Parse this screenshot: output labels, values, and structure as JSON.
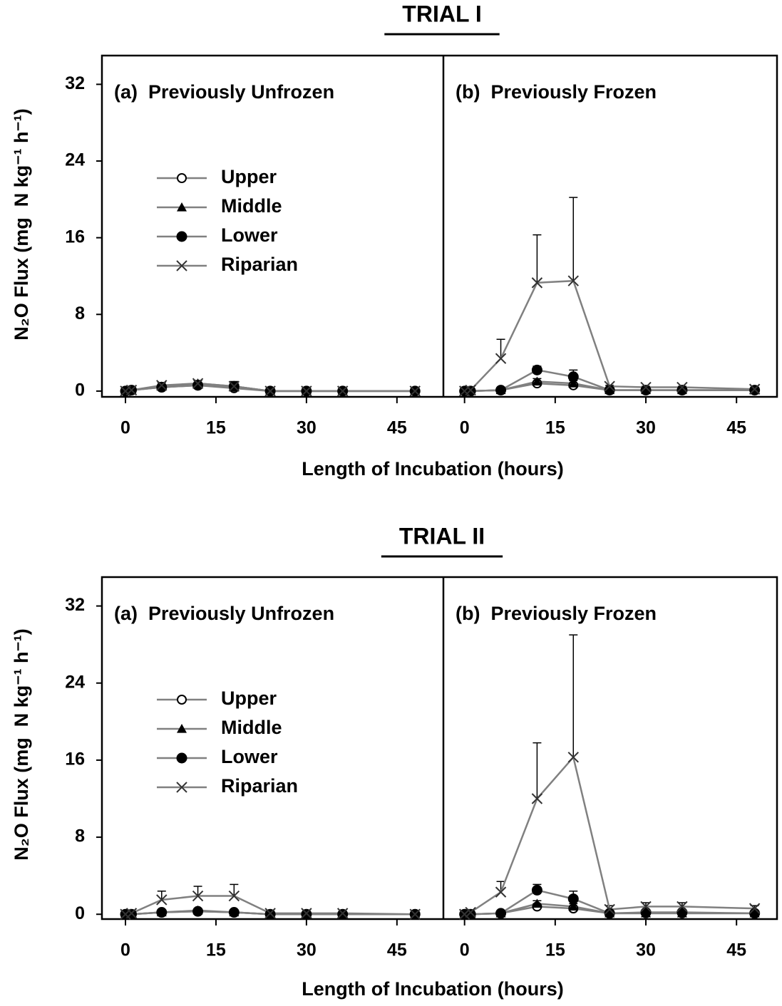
{
  "chart_data": [
    {
      "type": "line",
      "title": "TRIAL I",
      "ylabel": "N₂O Flux (mg  N kg⁻¹ h⁻¹)",
      "xlabel": "Length of Incubation (hours)",
      "ylim": [
        -0.6,
        35
      ],
      "yticks": [
        0,
        8,
        16,
        24,
        32
      ],
      "legend": true,
      "panels": [
        {
          "label": "(a)  Previously Unfrozen",
          "xlim": [
            -3.9,
            52.7
          ],
          "xticks": [
            0,
            15,
            30,
            45
          ],
          "x": [
            0,
            1,
            6,
            12,
            18,
            24,
            30,
            36,
            48
          ],
          "series": [
            {
              "name": "Upper",
              "marker": "open-circle",
              "color": "#808080",
              "marker_color": "#000000",
              "values": [
                0,
                0.1,
                0.4,
                0.6,
                0.3,
                0,
                0,
                0,
                0
              ],
              "errors": [
                0.1,
                0.1,
                0.2,
                0.2,
                0.3,
                0.1,
                0.1,
                0.1,
                0.1
              ]
            },
            {
              "name": "Middle",
              "marker": "triangle",
              "color": "#808080",
              "marker_color": "#000000",
              "values": [
                0,
                0.1,
                0.5,
                0.8,
                0.5,
                0,
                0,
                0,
                0
              ],
              "errors": [
                0.1,
                0.1,
                0.2,
                0.3,
                0.4,
                0.1,
                0.1,
                0.1,
                0.1
              ]
            },
            {
              "name": "Lower",
              "marker": "filled-circle",
              "color": "#808080",
              "marker_color": "#000000",
              "values": [
                0,
                0.1,
                0.4,
                0.6,
                0.5,
                0,
                0,
                0,
                0
              ],
              "errors": [
                0.1,
                0.1,
                0.2,
                0.2,
                0.4,
                0.1,
                0.1,
                0.1,
                0.1
              ]
            },
            {
              "name": "Riparian",
              "marker": "cross",
              "color": "#808080",
              "marker_color": "#333333",
              "values": [
                0,
                0.1,
                0.6,
                0.8,
                0.5,
                0,
                0,
                0,
                0
              ],
              "errors": [
                0.1,
                0.1,
                0.3,
                0.3,
                0.5,
                0.1,
                0.1,
                0.1,
                0.1
              ]
            }
          ]
        },
        {
          "label": "(b)  Previously Frozen",
          "xlim": [
            -3.5,
            51.7
          ],
          "xticks": [
            0,
            15,
            30,
            45
          ],
          "x": [
            0,
            1,
            6,
            12,
            18,
            24,
            30,
            36,
            48
          ],
          "series": [
            {
              "marker": "open-circle",
              "color": "#808080",
              "marker_color": "#000000",
              "values": [
                0,
                0,
                0.1,
                0.8,
                0.6,
                0.1,
                0.1,
                0.1,
                0.1
              ],
              "errors": [
                0.1,
                0.1,
                0.1,
                0.2,
                0.2,
                0.1,
                0.1,
                0.1,
                0.1
              ]
            },
            {
              "marker": "triangle",
              "color": "#808080",
              "marker_color": "#000000",
              "values": [
                0,
                0,
                0.1,
                1.0,
                0.8,
                0.1,
                0.1,
                0.1,
                0.1
              ],
              "errors": [
                0.1,
                0.1,
                0.1,
                0.3,
                0.3,
                0.1,
                0.1,
                0.1,
                0.1
              ]
            },
            {
              "marker": "filled-circle",
              "color": "#808080",
              "marker_color": "#000000",
              "values": [
                0,
                0,
                0.1,
                2.2,
                1.5,
                0.1,
                0.1,
                0.1,
                0.1
              ],
              "errors": [
                0.1,
                0.1,
                0.1,
                0.4,
                0.7,
                0.1,
                0.1,
                0.1,
                0.1
              ]
            },
            {
              "marker": "cross",
              "color": "#808080",
              "marker_color": "#333333",
              "values": [
                0,
                0.1,
                3.4,
                11.3,
                11.5,
                0.5,
                0.4,
                0.4,
                0.2
              ],
              "errors": [
                0.1,
                0.1,
                2.0,
                5.0,
                8.7,
                0.1,
                0.1,
                0.1,
                0.1
              ]
            }
          ]
        }
      ]
    },
    {
      "type": "line",
      "title": "TRIAL II",
      "ylabel": "N₂O Flux (mg  N kg⁻¹ h⁻¹)",
      "xlabel": "Length of Incubation (hours)",
      "ylim": [
        -0.5,
        35
      ],
      "yticks": [
        0,
        8,
        16,
        24,
        32
      ],
      "legend": true,
      "panels": [
        {
          "label": "(a)  Previously Unfrozen",
          "xlim": [
            -3.9,
            52.7
          ],
          "xticks": [
            0,
            15,
            30,
            45
          ],
          "x": [
            0,
            1,
            6,
            12,
            18,
            24,
            30,
            36,
            48
          ],
          "series": [
            {
              "name": "Upper",
              "marker": "open-circle",
              "color": "#808080",
              "marker_color": "#000000",
              "values": [
                0,
                0,
                0.2,
                0.3,
                0.2,
                0,
                0,
                0,
                0
              ],
              "errors": [
                0.1,
                0.1,
                0.1,
                0.2,
                0.1,
                0.1,
                0.1,
                0.1,
                0.1
              ]
            },
            {
              "name": "Middle",
              "marker": "triangle",
              "color": "#808080",
              "marker_color": "#000000",
              "values": [
                0,
                0,
                0.2,
                0.4,
                0.2,
                0,
                0,
                0,
                0
              ],
              "errors": [
                0.1,
                0.1,
                0.1,
                0.2,
                0.1,
                0.1,
                0.1,
                0.1,
                0.1
              ]
            },
            {
              "name": "Lower",
              "marker": "filled-circle",
              "color": "#808080",
              "marker_color": "#000000",
              "values": [
                0,
                0,
                0.2,
                0.3,
                0.2,
                0,
                0,
                0,
                0
              ],
              "errors": [
                0.1,
                0.1,
                0.1,
                0.2,
                0.1,
                0.1,
                0.1,
                0.1,
                0.1
              ]
            },
            {
              "name": "Riparian",
              "marker": "cross",
              "color": "#808080",
              "marker_color": "#333333",
              "values": [
                0,
                0.1,
                1.5,
                1.9,
                1.9,
                0.1,
                0.1,
                0.1,
                0
              ],
              "errors": [
                0.1,
                0.1,
                0.9,
                1.0,
                1.2,
                0.1,
                0.1,
                0.1,
                0.1
              ]
            }
          ]
        },
        {
          "label": "(b)  Previously Frozen",
          "xlim": [
            -3.5,
            51.7
          ],
          "xticks": [
            0,
            15,
            30,
            45
          ],
          "x": [
            0,
            1,
            6,
            12,
            18,
            24,
            30,
            36,
            48
          ],
          "series": [
            {
              "marker": "open-circle",
              "color": "#808080",
              "marker_color": "#000000",
              "values": [
                0,
                0,
                0.1,
                0.8,
                0.6,
                0.1,
                0.1,
                0.1,
                0.1
              ],
              "errors": [
                0.1,
                0.1,
                0.1,
                0.3,
                0.2,
                0.1,
                0.1,
                0.1,
                0.1
              ]
            },
            {
              "marker": "triangle",
              "color": "#808080",
              "marker_color": "#000000",
              "values": [
                0,
                0,
                0.1,
                1.1,
                0.8,
                0.1,
                0.1,
                0.1,
                0.1
              ],
              "errors": [
                0.1,
                0.1,
                0.1,
                0.3,
                0.3,
                0.1,
                0.1,
                0.1,
                0.1
              ]
            },
            {
              "marker": "filled-circle",
              "color": "#808080",
              "marker_color": "#000000",
              "values": [
                0,
                0,
                0.1,
                2.5,
                1.6,
                0.1,
                0.2,
                0.2,
                0.1
              ],
              "errors": [
                0.1,
                0.1,
                0.1,
                0.6,
                0.8,
                0.1,
                0.2,
                0.2,
                0.1
              ]
            },
            {
              "marker": "cross",
              "color": "#808080",
              "marker_color": "#333333",
              "values": [
                0,
                0.2,
                2.3,
                12.0,
                16.3,
                0.5,
                0.8,
                0.8,
                0.6
              ],
              "errors": [
                0.1,
                0.1,
                1.1,
                5.8,
                12.7,
                0.4,
                0.4,
                0.4,
                0.3
              ]
            }
          ]
        }
      ]
    }
  ]
}
